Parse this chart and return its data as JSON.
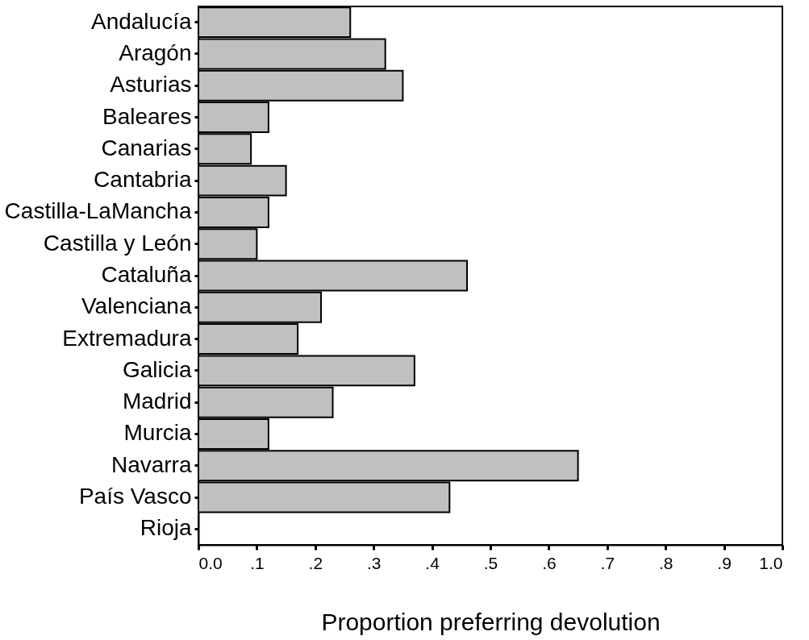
{
  "chart_data": {
    "type": "bar",
    "orientation": "horizontal",
    "xlabel": "Proportion preferring devolution",
    "categories": [
      "Andalucía",
      "Aragón",
      "Asturias",
      "Baleares",
      "Canarias",
      "Cantabria",
      "Castilla-LaMancha",
      "Castilla y León",
      "Cataluña",
      "Valenciana",
      "Extremadura",
      "Galicia",
      "Madrid",
      "Murcia",
      "Navarra",
      "País Vasco",
      "Rioja"
    ],
    "values": [
      0.26,
      0.32,
      0.35,
      0.12,
      0.09,
      0.15,
      0.12,
      0.1,
      0.46,
      0.21,
      0.17,
      0.37,
      0.23,
      0.12,
      0.65,
      0.43,
      0
    ],
    "color": "#c0c0c0",
    "xlim": [
      0,
      1
    ],
    "xticks": [
      {
        "value": 0,
        "label": "0.0"
      },
      {
        "value": 0.1,
        "label": ".1"
      },
      {
        "value": 0.2,
        "label": ".2"
      },
      {
        "value": 0.3,
        "label": ".3"
      },
      {
        "value": 0.4,
        "label": ".4"
      },
      {
        "value": 0.5,
        "label": ".5"
      },
      {
        "value": 0.6,
        "label": ".6"
      },
      {
        "value": 0.7,
        "label": ".7"
      },
      {
        "value": 0.8,
        "label": ".8"
      },
      {
        "value": 0.9,
        "label": ".9"
      },
      {
        "value": 1,
        "label": "1.0"
      }
    ],
    "grid": false
  }
}
